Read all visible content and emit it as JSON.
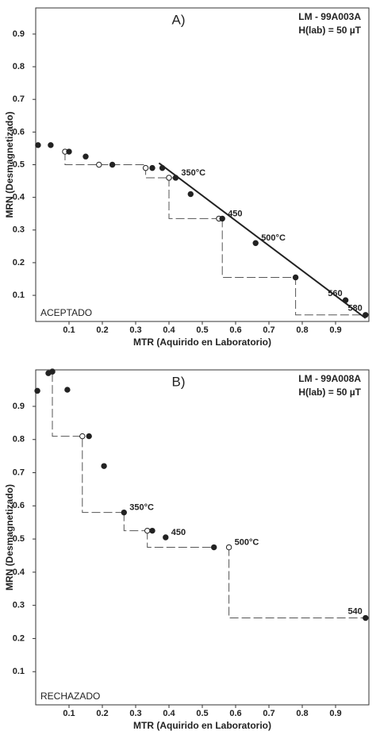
{
  "chart_data": [
    {
      "type": "scatter",
      "title": "A)",
      "annotations": [
        "LM - 99A003A",
        "H(lab) = 50 µT"
      ],
      "status": "ACEPTADO",
      "x_label": "MTR (Aquirido en Laboratorio)",
      "y_label": "MRN (Desmagnetizado)",
      "xlim": [
        0,
        1
      ],
      "ylim": [
        0.02,
        0.98
      ],
      "xticks": [
        0.1,
        0.2,
        0.3,
        0.4,
        0.5,
        0.6,
        0.7,
        0.8,
        0.9
      ],
      "yticks": [
        0.1,
        0.2,
        0.3,
        0.4,
        0.5,
        0.6,
        0.7,
        0.8,
        0.9
      ],
      "points": {
        "color": "#222",
        "x": [
          0.007,
          0.045,
          0.1,
          0.15,
          0.23,
          0.35,
          0.38,
          0.42,
          0.465,
          0.56,
          0.66,
          0.78,
          0.93,
          0.99
        ],
        "values": [
          0.56,
          0.56,
          0.54,
          0.525,
          0.5,
          0.49,
          0.49,
          0.46,
          0.41,
          0.335,
          0.26,
          0.155,
          0.085,
          0.04
        ],
        "labels": [
          null,
          null,
          null,
          null,
          null,
          null,
          null,
          "350°C",
          null,
          "450",
          "500°C",
          null,
          "560",
          "580"
        ]
      },
      "checks": {
        "color": "#222",
        "x": [
          0.088,
          0.19,
          0.33,
          0.4,
          0.55
        ],
        "values": [
          0.54,
          0.5,
          0.49,
          0.46,
          0.335
        ],
        "labels": [
          null,
          null,
          null,
          null,
          null
        ]
      },
      "steps": {
        "color": "#555",
        "x": [
          0.088,
          0.088,
          0.33,
          0.33,
          0.42,
          null,
          0.4,
          0.4,
          0.56,
          null,
          0.56,
          0.56,
          0.78,
          0.78,
          0.99
        ],
        "values": [
          0.54,
          0.5,
          0.5,
          0.46,
          0.46,
          null,
          0.46,
          0.335,
          0.335,
          null,
          0.335,
          0.155,
          0.155,
          0.04,
          0.04
        ]
      },
      "fit": {
        "color": "#222",
        "x": [
          0.37,
          0.99
        ],
        "values": [
          0.505,
          0.03
        ]
      }
    },
    {
      "type": "scatter",
      "title": "B)",
      "annotations": [
        "LM - 99A008A",
        "H(lab) = 50 µT"
      ],
      "status": "RECHAZADO",
      "x_label": "MTR (Aquirido en Laboratorio)",
      "y_label": "MRN (Desmagnetizado)",
      "xlim": [
        0,
        1
      ],
      "ylim": [
        0,
        1.01
      ],
      "xticks": [
        0.1,
        0.2,
        0.3,
        0.4,
        0.5,
        0.6,
        0.7,
        0.8,
        0.9
      ],
      "yticks": [
        0.1,
        0.2,
        0.3,
        0.4,
        0.5,
        0.6,
        0.7,
        0.8,
        0.9
      ],
      "points": {
        "color": "#222",
        "x": [
          0.005,
          0.038,
          0.05,
          0.095,
          0.16,
          0.205,
          0.265,
          0.35,
          0.39,
          0.535,
          0.99
        ],
        "values": [
          0.947,
          1.0,
          1.005,
          0.95,
          0.81,
          0.72,
          0.58,
          0.525,
          0.505,
          0.475,
          0.262
        ],
        "labels": [
          null,
          null,
          null,
          null,
          null,
          null,
          "350°C",
          null,
          "450",
          null,
          "540"
        ]
      },
      "checks": {
        "color": "#222",
        "x": [
          0.05,
          0.14,
          0.335,
          0.58
        ],
        "values": [
          1.005,
          0.81,
          0.525,
          0.475
        ],
        "labels": [
          null,
          null,
          null,
          "500°C"
        ]
      },
      "steps": {
        "color": "#555",
        "x": [
          0.05,
          0.05,
          0.14,
          0.14,
          0.265,
          null,
          0.265,
          0.265,
          0.35,
          null,
          0.335,
          0.335,
          0.535,
          null,
          0.58,
          0.58,
          0.99
        ],
        "values": [
          1.0,
          0.81,
          0.81,
          0.58,
          0.58,
          null,
          0.58,
          0.525,
          0.525,
          null,
          0.525,
          0.475,
          0.475,
          null,
          0.475,
          0.262,
          0.262
        ]
      }
    }
  ]
}
